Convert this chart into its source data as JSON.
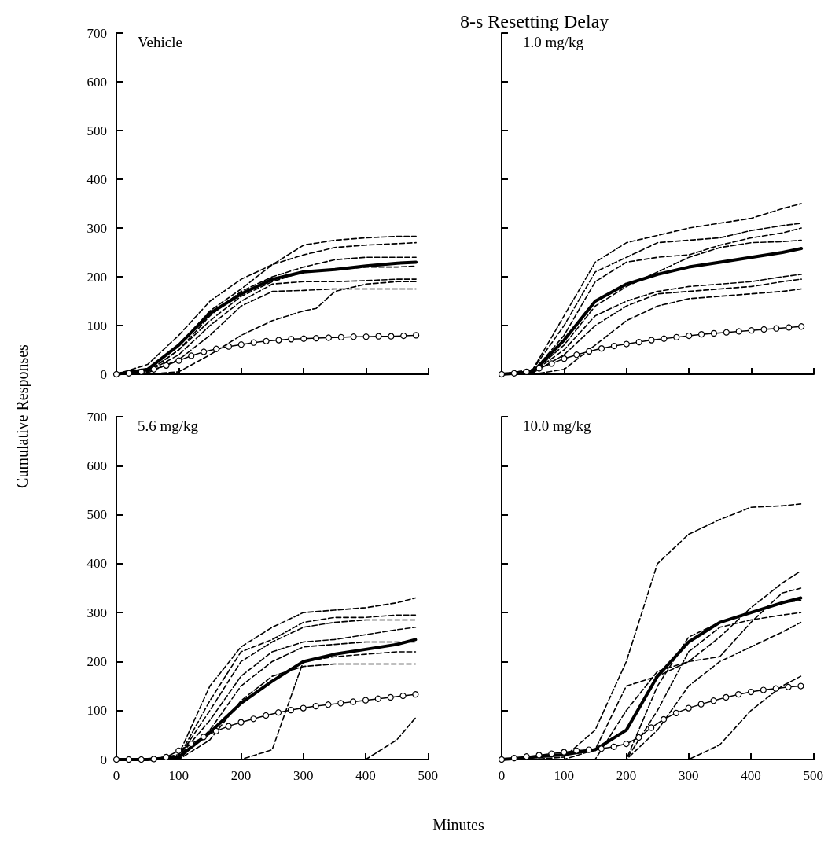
{
  "chart_data": [
    {
      "type": "line",
      "xlabel": "Minutes",
      "ylabel": "Cumulative Responses",
      "annotations": [
        "Vehicle"
      ],
      "xlim": [
        0,
        500
      ],
      "xticks": [
        0,
        100,
        200,
        300,
        400,
        500
      ],
      "ylim": [
        0,
        700
      ],
      "yticks": [
        0,
        100,
        200,
        300,
        400,
        500,
        600,
        700
      ],
      "tick_labels": "y",
      "x": [
        0,
        50,
        100,
        150,
        200,
        250,
        300,
        350,
        400,
        450,
        480
      ],
      "series": [
        {
          "color": "#000000",
          "line_style": "dashed",
          "marker": "none",
          "values": [
            0,
            20,
            80,
            150,
            195,
            225,
            265,
            275,
            280,
            283,
            283
          ]
        },
        {
          "color": "#000000",
          "line_style": "dashed",
          "marker": "none",
          "values": [
            0,
            10,
            60,
            130,
            175,
            225,
            245,
            260,
            265,
            268,
            270
          ]
        },
        {
          "color": "#000000",
          "line_style": "dashed",
          "marker": "none",
          "values": [
            0,
            5,
            50,
            120,
            170,
            200,
            220,
            235,
            240,
            240,
            240
          ]
        },
        {
          "color": "#000000",
          "line_style": "dashed",
          "marker": "none",
          "values": [
            0,
            5,
            50,
            110,
            160,
            190,
            210,
            215,
            220,
            220,
            222
          ]
        },
        {
          "color": "#000000",
          "line_style": "dashed",
          "marker": "none",
          "values": [
            0,
            5,
            40,
            100,
            150,
            185,
            190,
            190,
            192,
            195,
            195
          ]
        },
        {
          "color": "#000000",
          "line_style": "dashed",
          "marker": "none",
          "values": [
            0,
            3,
            30,
            80,
            140,
            170,
            172,
            175,
            175,
            175,
            175
          ]
        },
        {
          "color": "#000000",
          "line_style": "dashed",
          "marker": "none",
          "x": [
            0,
            50,
            100,
            150,
            200,
            250,
            300,
            320,
            350,
            400,
            450,
            480
          ],
          "values": [
            0,
            0,
            5,
            40,
            80,
            110,
            130,
            135,
            170,
            185,
            190,
            190
          ]
        },
        {
          "color": "#000000",
          "line_style": "solid",
          "marker": "none",
          "values": [
            0,
            10,
            60,
            125,
            165,
            195,
            210,
            215,
            222,
            228,
            230
          ]
        },
        {
          "color": "#000000",
          "line_style": "solid",
          "marker": "circle",
          "x": [
            0,
            20,
            40,
            60,
            80,
            100,
            120,
            140,
            160,
            180,
            200,
            220,
            240,
            260,
            280,
            300,
            320,
            340,
            360,
            380,
            400,
            420,
            440,
            460,
            480
          ],
          "values": [
            0,
            2,
            5,
            10,
            18,
            28,
            38,
            46,
            52,
            57,
            61,
            65,
            68,
            70,
            72,
            73,
            74,
            75,
            76,
            77,
            77,
            78,
            78,
            79,
            80
          ]
        }
      ]
    },
    {
      "type": "line",
      "title": "8-s Resetting Delay",
      "annotations": [
        "1.0 mg/kg"
      ],
      "xlim": [
        0,
        500
      ],
      "xticks": [
        0,
        100,
        200,
        300,
        400,
        500
      ],
      "ylim": [
        0,
        700
      ],
      "yticks": [
        0,
        100,
        200,
        300,
        400,
        500,
        600,
        700
      ],
      "tick_labels": false,
      "x": [
        0,
        50,
        100,
        150,
        200,
        250,
        300,
        350,
        400,
        450,
        480
      ],
      "series": [
        {
          "color": "#000000",
          "line_style": "dashed",
          "marker": "none",
          "values": [
            0,
            10,
            120,
            230,
            270,
            285,
            300,
            310,
            320,
            340,
            350
          ]
        },
        {
          "color": "#000000",
          "line_style": "dashed",
          "marker": "none",
          "values": [
            0,
            10,
            100,
            210,
            240,
            270,
            275,
            280,
            295,
            305,
            310
          ]
        },
        {
          "color": "#000000",
          "line_style": "dashed",
          "marker": "none",
          "values": [
            0,
            5,
            80,
            190,
            230,
            240,
            245,
            265,
            280,
            290,
            300
          ]
        },
        {
          "color": "#000000",
          "line_style": "dashed",
          "marker": "none",
          "values": [
            0,
            5,
            60,
            140,
            180,
            210,
            240,
            260,
            270,
            272,
            275
          ]
        },
        {
          "color": "#000000",
          "line_style": "dashed",
          "marker": "none",
          "values": [
            0,
            5,
            50,
            120,
            150,
            170,
            180,
            185,
            190,
            200,
            205
          ]
        },
        {
          "color": "#000000",
          "line_style": "dashed",
          "marker": "none",
          "values": [
            0,
            3,
            40,
            100,
            140,
            165,
            170,
            175,
            180,
            190,
            195
          ]
        },
        {
          "color": "#000000",
          "line_style": "dashed",
          "marker": "none",
          "values": [
            0,
            0,
            10,
            60,
            110,
            140,
            155,
            160,
            165,
            170,
            175
          ]
        },
        {
          "color": "#000000",
          "line_style": "solid",
          "marker": "none",
          "values": [
            0,
            5,
            70,
            150,
            185,
            205,
            220,
            230,
            240,
            250,
            258
          ]
        },
        {
          "color": "#000000",
          "line_style": "solid",
          "marker": "circle",
          "x": [
            0,
            20,
            40,
            60,
            80,
            100,
            120,
            140,
            160,
            180,
            200,
            220,
            240,
            260,
            280,
            300,
            320,
            340,
            360,
            380,
            400,
            420,
            440,
            460,
            480
          ],
          "values": [
            0,
            2,
            5,
            12,
            22,
            32,
            40,
            47,
            53,
            58,
            62,
            66,
            70,
            73,
            76,
            79,
            82,
            84,
            86,
            88,
            90,
            92,
            94,
            96,
            98
          ]
        }
      ]
    },
    {
      "type": "line",
      "annotations": [
        "5.6 mg/kg"
      ],
      "xlim": [
        0,
        500
      ],
      "xticks": [
        0,
        100,
        200,
        300,
        400,
        500
      ],
      "ylim": [
        0,
        700
      ],
      "yticks": [
        0,
        100,
        200,
        300,
        400,
        500,
        600,
        700
      ],
      "x": [
        0,
        50,
        100,
        150,
        200,
        250,
        300,
        350,
        400,
        450,
        480
      ],
      "series": [
        {
          "color": "#000000",
          "line_style": "dashed",
          "marker": "none",
          "values": [
            0,
            0,
            10,
            150,
            230,
            270,
            300,
            305,
            310,
            320,
            330
          ]
        },
        {
          "color": "#000000",
          "line_style": "dashed",
          "marker": "none",
          "values": [
            0,
            0,
            5,
            120,
            220,
            245,
            280,
            290,
            290,
            295,
            295
          ]
        },
        {
          "color": "#000000",
          "line_style": "dashed",
          "marker": "none",
          "values": [
            0,
            0,
            5,
            100,
            200,
            240,
            270,
            280,
            285,
            285,
            285
          ]
        },
        {
          "color": "#000000",
          "line_style": "dashed",
          "marker": "none",
          "values": [
            0,
            0,
            5,
            80,
            170,
            220,
            240,
            245,
            255,
            265,
            270
          ]
        },
        {
          "color": "#000000",
          "line_style": "dashed",
          "marker": "none",
          "values": [
            0,
            0,
            0,
            60,
            150,
            200,
            230,
            235,
            240,
            240,
            240
          ]
        },
        {
          "color": "#000000",
          "line_style": "dashed",
          "marker": "none",
          "values": [
            0,
            0,
            0,
            40,
            120,
            170,
            190,
            195,
            195,
            195,
            195
          ]
        },
        {
          "color": "#000000",
          "line_style": "dashed",
          "marker": "none",
          "values": [
            0,
            0,
            0,
            0,
            0,
            20,
            200,
            210,
            215,
            220,
            220
          ]
        },
        {
          "color": "#000000",
          "line_style": "dashed",
          "marker": "none",
          "values": [
            0,
            0,
            0,
            0,
            0,
            0,
            0,
            0,
            0,
            40,
            85
          ]
        },
        {
          "color": "#000000",
          "line_style": "solid",
          "marker": "none",
          "values": [
            0,
            0,
            5,
            55,
            115,
            160,
            200,
            215,
            225,
            235,
            245
          ]
        },
        {
          "color": "#000000",
          "line_style": "solid",
          "marker": "circle",
          "x": [
            0,
            20,
            40,
            60,
            80,
            100,
            120,
            140,
            160,
            180,
            200,
            220,
            240,
            260,
            280,
            300,
            320,
            340,
            360,
            380,
            400,
            420,
            440,
            460,
            480
          ],
          "values": [
            0,
            0,
            0,
            1,
            5,
            18,
            32,
            46,
            58,
            68,
            76,
            83,
            90,
            96,
            101,
            105,
            109,
            112,
            115,
            118,
            121,
            124,
            127,
            130,
            133
          ]
        }
      ]
    },
    {
      "type": "line",
      "annotations": [
        "10.0 mg/kg"
      ],
      "xlim": [
        0,
        500
      ],
      "xticks": [
        0,
        100,
        200,
        300,
        400,
        500
      ],
      "ylim": [
        0,
        700
      ],
      "yticks": [
        0,
        100,
        200,
        300,
        400,
        500,
        600,
        700
      ],
      "tick_labels": "x",
      "x": [
        0,
        50,
        100,
        150,
        200,
        250,
        300,
        350,
        400,
        450,
        480
      ],
      "series": [
        {
          "color": "#000000",
          "line_style": "dashed",
          "marker": "none",
          "values": [
            0,
            0,
            5,
            60,
            200,
            400,
            460,
            490,
            515,
            518,
            522
          ]
        },
        {
          "color": "#000000",
          "line_style": "dashed",
          "marker": "none",
          "values": [
            0,
            0,
            0,
            20,
            150,
            170,
            200,
            250,
            310,
            360,
            385
          ]
        },
        {
          "color": "#000000",
          "line_style": "dashed",
          "marker": "none",
          "values": [
            0,
            0,
            0,
            0,
            100,
            180,
            200,
            210,
            280,
            340,
            350
          ]
        },
        {
          "color": "#000000",
          "line_style": "dashed",
          "marker": "none",
          "values": [
            0,
            0,
            0,
            0,
            0,
            150,
            250,
            280,
            300,
            320,
            325
          ]
        },
        {
          "color": "#000000",
          "line_style": "dashed",
          "marker": "none",
          "values": [
            0,
            0,
            0,
            0,
            0,
            100,
            220,
            270,
            285,
            295,
            300
          ]
        },
        {
          "color": "#000000",
          "line_style": "dashed",
          "marker": "none",
          "values": [
            0,
            0,
            0,
            0,
            0,
            60,
            150,
            200,
            230,
            260,
            280
          ]
        },
        {
          "color": "#000000",
          "line_style": "dashed",
          "marker": "none",
          "values": [
            0,
            0,
            0,
            0,
            0,
            0,
            0,
            30,
            100,
            150,
            170
          ]
        },
        {
          "color": "#000000",
          "line_style": "solid",
          "marker": "none",
          "values": [
            0,
            5,
            10,
            20,
            60,
            170,
            240,
            280,
            300,
            320,
            330
          ]
        },
        {
          "color": "#000000",
          "line_style": "solid",
          "marker": "circle",
          "x": [
            0,
            20,
            40,
            60,
            80,
            100,
            120,
            140,
            160,
            180,
            200,
            220,
            240,
            260,
            280,
            300,
            320,
            340,
            360,
            380,
            400,
            420,
            440,
            460,
            480
          ],
          "values": [
            0,
            3,
            6,
            9,
            12,
            15,
            18,
            20,
            22,
            26,
            32,
            45,
            65,
            82,
            95,
            105,
            113,
            120,
            127,
            133,
            138,
            142,
            145,
            148,
            150
          ]
        }
      ]
    }
  ]
}
